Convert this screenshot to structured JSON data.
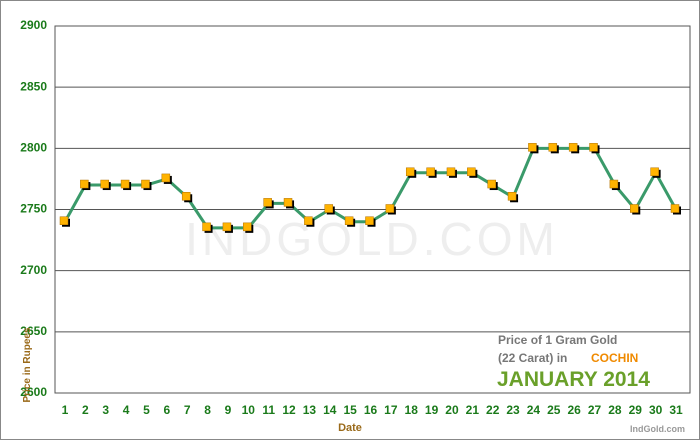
{
  "chart_data": {
    "type": "line",
    "y_label": "Price in Rupees",
    "x_label": "Date",
    "watermark": "IndGold.com",
    "legend_lines": [
      "Price of 1 Gram Gold",
      "(22 Carat) in"
    ],
    "city": "COCHIN",
    "period": "JANUARY 2014",
    "footer": "IndGold.com",
    "categories": [
      1,
      2,
      3,
      4,
      5,
      6,
      7,
      8,
      9,
      10,
      11,
      12,
      13,
      14,
      15,
      16,
      17,
      18,
      19,
      20,
      21,
      22,
      23,
      24,
      25,
      26,
      27,
      28,
      29,
      30,
      31
    ],
    "series": [
      {
        "color": "#3a9a6a",
        "marker_color": "#ffb300",
        "values": [
          2740,
          2770,
          2770,
          2770,
          2770,
          2775,
          2760,
          2735,
          2735,
          2735,
          2755,
          2755,
          2740,
          2750,
          2740,
          2740,
          2750,
          2780,
          2780,
          2780,
          2780,
          2770,
          2760,
          2800,
          2800,
          2800,
          2800,
          2770,
          2750,
          2780,
          2750
        ]
      }
    ],
    "ylim": [
      2600,
      2900
    ],
    "yticks": [
      2600,
      2650,
      2700,
      2750,
      2800,
      2850,
      2900
    ],
    "grid": true
  }
}
